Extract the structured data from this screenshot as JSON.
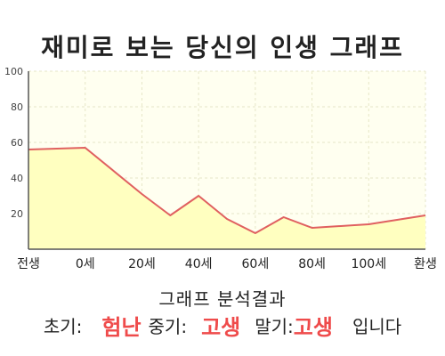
{
  "title": "재미로 보는 당신의 인생 그래프",
  "chart_data": {
    "type": "area",
    "x_tick_labels": [
      "전생",
      "0세",
      "20세",
      "40세",
      "60세",
      "80세",
      "100세",
      "환생"
    ],
    "y_ticks": [
      20,
      40,
      60,
      80,
      100
    ],
    "ylim": [
      0,
      100
    ],
    "grid": true,
    "series": [
      {
        "x": [
          "전생",
          "0세",
          "20세",
          "30세",
          "40세",
          "50세",
          "60세",
          "70세",
          "80세",
          "100세",
          "환생"
        ],
        "values": [
          56,
          57,
          31,
          19,
          30,
          17,
          9,
          18,
          12,
          14,
          19
        ]
      }
    ],
    "colors": {
      "line": "#e06060",
      "fill": "#ffffc0",
      "plot_bg": "#fffff0",
      "grid": "#e6e6c8",
      "axis": "#555555"
    }
  },
  "result": {
    "header": "그래프 분석결과",
    "early_label": "초기:",
    "early_value": "험난",
    "middle_label": "중기:",
    "middle_value": "고생",
    "late_label": "말기:",
    "late_value": "고생",
    "suffix": "입니다"
  }
}
